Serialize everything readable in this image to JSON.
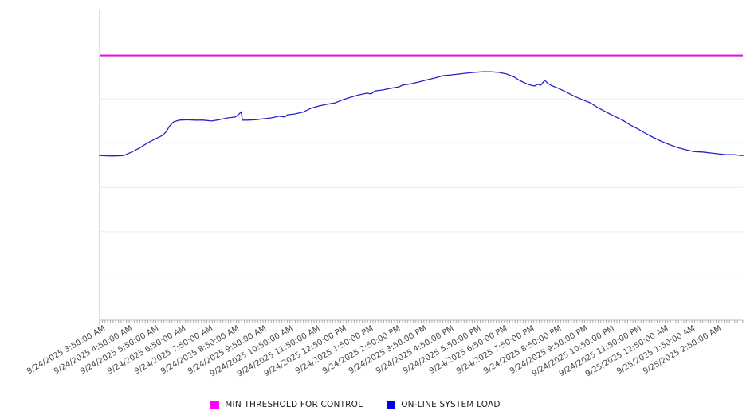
{
  "chart_data": {
    "type": "line",
    "title": "",
    "grid": "horizontal",
    "legend_position": "bottom-center",
    "x_axis": {
      "labels": [
        "9/24/2025 3:50:00 AM",
        "9/24/2025 4:50:00 AM",
        "9/24/2025 5:50:00 AM",
        "9/24/2025 6:50:00 AM",
        "9/24/2025 7:50:00 AM",
        "9/24/2025 8:50:00 AM",
        "9/24/2025 9:50:00 AM",
        "9/24/2025 10:50:00 AM",
        "9/24/2025 11:50:00 AM",
        "9/24/2025 12:50:00 PM",
        "9/24/2025 1:50:00 PM",
        "9/24/2025 2:50:00 PM",
        "9/24/2025 3:50:00 PM",
        "9/24/2025 4:50:00 PM",
        "9/24/2025 5:50:00 PM",
        "9/24/2025 6:50:00 PM",
        "9/24/2025 7:50:00 PM",
        "9/24/2025 8:50:00 PM",
        "9/24/2025 9:50:00 PM",
        "9/24/2025 10:50:00 PM",
        "9/24/2025 11:50:00 PM",
        "9/25/2025 12:50:00 AM",
        "9/25/2025 1:50:00 AM",
        "9/25/2025 2:50:00 AM"
      ],
      "minor_tick_count": 240
    },
    "value_axis": {
      "min": 0,
      "max": 7,
      "gridline_step": 1,
      "labels_visible": false
    },
    "colors": {
      "gridline": "#ececec",
      "axis": "#bdbdbd",
      "tick": "#aaaaaa",
      "background": "#ffffff"
    },
    "series": [
      {
        "name": "MIN THRESHOLD FOR CONTROL",
        "type": "threshold",
        "line_color": "#e612dc",
        "marker_color": "#ff00ff",
        "value": 5.98
      },
      {
        "name": "ON-LINE SYSTEM LOAD",
        "type": "line",
        "line_color": "#2323c8",
        "marker_color": "#0000ee",
        "points": [
          [
            0.0,
            3.72
          ],
          [
            0.019,
            3.71
          ],
          [
            0.037,
            3.72
          ],
          [
            0.05,
            3.8
          ],
          [
            0.062,
            3.89
          ],
          [
            0.074,
            4.0
          ],
          [
            0.087,
            4.1
          ],
          [
            0.097,
            4.17
          ],
          [
            0.103,
            4.25
          ],
          [
            0.109,
            4.39
          ],
          [
            0.115,
            4.48
          ],
          [
            0.124,
            4.52
          ],
          [
            0.136,
            4.53
          ],
          [
            0.149,
            4.52
          ],
          [
            0.161,
            4.52
          ],
          [
            0.174,
            4.5
          ],
          [
            0.186,
            4.53
          ],
          [
            0.199,
            4.57
          ],
          [
            0.211,
            4.59
          ],
          [
            0.217,
            4.66
          ],
          [
            0.22,
            4.71
          ],
          [
            0.222,
            4.52
          ],
          [
            0.23,
            4.52
          ],
          [
            0.242,
            4.53
          ],
          [
            0.254,
            4.55
          ],
          [
            0.267,
            4.57
          ],
          [
            0.279,
            4.61
          ],
          [
            0.288,
            4.59
          ],
          [
            0.292,
            4.64
          ],
          [
            0.304,
            4.66
          ],
          [
            0.316,
            4.7
          ],
          [
            0.329,
            4.79
          ],
          [
            0.341,
            4.84
          ],
          [
            0.354,
            4.88
          ],
          [
            0.366,
            4.91
          ],
          [
            0.378,
            4.98
          ],
          [
            0.391,
            5.04
          ],
          [
            0.403,
            5.09
          ],
          [
            0.416,
            5.13
          ],
          [
            0.422,
            5.11
          ],
          [
            0.428,
            5.18
          ],
          [
            0.44,
            5.2
          ],
          [
            0.453,
            5.24
          ],
          [
            0.465,
            5.27
          ],
          [
            0.471,
            5.31
          ],
          [
            0.484,
            5.34
          ],
          [
            0.496,
            5.38
          ],
          [
            0.509,
            5.43
          ],
          [
            0.521,
            5.47
          ],
          [
            0.533,
            5.52
          ],
          [
            0.546,
            5.54
          ],
          [
            0.558,
            5.56
          ],
          [
            0.571,
            5.58
          ],
          [
            0.583,
            5.6
          ],
          [
            0.596,
            5.61
          ],
          [
            0.608,
            5.61
          ],
          [
            0.62,
            5.6
          ],
          [
            0.633,
            5.56
          ],
          [
            0.645,
            5.49
          ],
          [
            0.651,
            5.43
          ],
          [
            0.658,
            5.38
          ],
          [
            0.664,
            5.34
          ],
          [
            0.67,
            5.31
          ],
          [
            0.676,
            5.29
          ],
          [
            0.681,
            5.33
          ],
          [
            0.686,
            5.31
          ],
          [
            0.692,
            5.42
          ],
          [
            0.696,
            5.36
          ],
          [
            0.701,
            5.31
          ],
          [
            0.713,
            5.24
          ],
          [
            0.726,
            5.15
          ],
          [
            0.738,
            5.06
          ],
          [
            0.751,
            4.98
          ],
          [
            0.763,
            4.91
          ],
          [
            0.775,
            4.8
          ],
          [
            0.788,
            4.7
          ],
          [
            0.8,
            4.61
          ],
          [
            0.813,
            4.52
          ],
          [
            0.825,
            4.41
          ],
          [
            0.837,
            4.32
          ],
          [
            0.85,
            4.21
          ],
          [
            0.862,
            4.12
          ],
          [
            0.875,
            4.03
          ],
          [
            0.887,
            3.96
          ],
          [
            0.899,
            3.9
          ],
          [
            0.912,
            3.85
          ],
          [
            0.924,
            3.81
          ],
          [
            0.937,
            3.8
          ],
          [
            0.949,
            3.78
          ],
          [
            0.962,
            3.76
          ],
          [
            0.974,
            3.74
          ],
          [
            0.986,
            3.74
          ],
          [
            1.0,
            3.72
          ]
        ]
      }
    ]
  }
}
